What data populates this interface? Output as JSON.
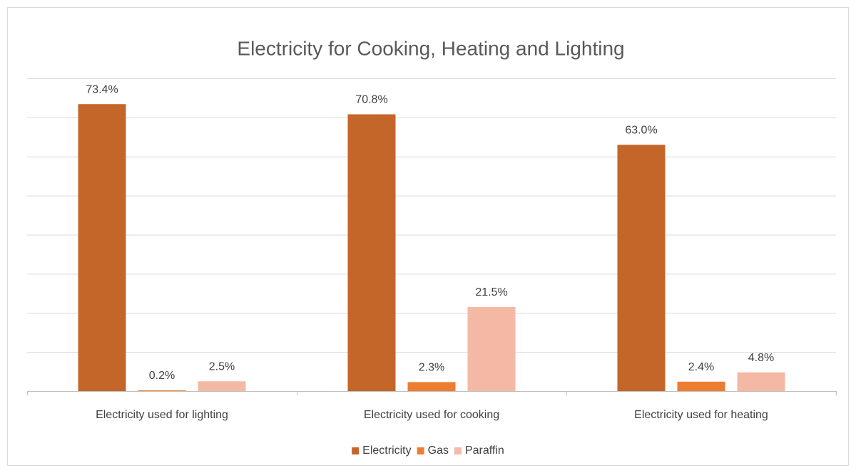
{
  "chart_data": {
    "type": "bar",
    "title": "Electricity for Cooking, Heating and Lighting",
    "categories": [
      "Electricity used for lighting",
      "Electricity used for cooking",
      "Electricity used for heating"
    ],
    "series": [
      {
        "name": "Electricity",
        "color": "#c4652a",
        "values": [
          73.4,
          70.8,
          63.0
        ],
        "value_labels": [
          "73.4%",
          "70.8%",
          "63.0%"
        ]
      },
      {
        "name": "Gas",
        "color": "#ed7d31",
        "values": [
          0.2,
          2.3,
          2.4
        ],
        "value_labels": [
          "0.2%",
          "2.3%",
          "2.4%"
        ]
      },
      {
        "name": "Paraffin",
        "color": "#f4b9a4",
        "values": [
          2.5,
          21.5,
          4.8
        ],
        "value_labels": [
          "2.5%",
          "21.5%",
          "4.8%"
        ]
      }
    ],
    "ylim": [
      0,
      80
    ],
    "yticks": [
      0,
      10,
      20,
      30,
      40,
      50,
      60,
      70,
      80
    ],
    "grid": true,
    "legend": "bottom"
  }
}
